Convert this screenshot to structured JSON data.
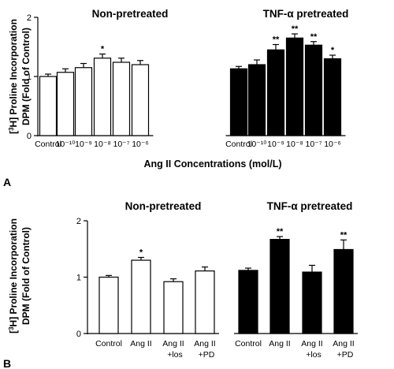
{
  "chart_data": [
    {
      "panel_label": "A",
      "type": "bar",
      "ylabel": "[3H] Proline Incorporation DPM (Fold of Control)",
      "xlabel": "Ang II Concentrations (mol/L)",
      "ylim": [
        0,
        2
      ],
      "yticks": [
        "0",
        "1",
        "2"
      ],
      "groups": [
        {
          "name": "Non-pretreated",
          "fill": "#ffffff",
          "categories": [
            "Control",
            "10⁻¹⁰",
            "10⁻⁹",
            "10⁻⁸",
            "10⁻⁷",
            "10⁻⁶"
          ],
          "values": [
            1.0,
            1.07,
            1.15,
            1.31,
            1.24,
            1.2
          ],
          "errors": [
            0.04,
            0.06,
            0.07,
            0.07,
            0.07,
            0.07
          ],
          "annotations": [
            "",
            "",
            "",
            "*",
            "",
            ""
          ]
        },
        {
          "name": "TNF-α pretreated",
          "fill": "#000000",
          "categories": [
            "Control",
            "10⁻¹⁰",
            "10⁻⁹",
            "10⁻⁸",
            "10⁻⁷",
            "10⁻⁶"
          ],
          "values": [
            1.13,
            1.2,
            1.45,
            1.65,
            1.53,
            1.3
          ],
          "errors": [
            0.04,
            0.08,
            0.09,
            0.07,
            0.06,
            0.06
          ],
          "annotations": [
            "",
            "",
            "**",
            "**",
            "**",
            "*"
          ]
        }
      ]
    },
    {
      "panel_label": "B",
      "type": "bar",
      "ylabel": "[3H] Proline Incorporation DPM (Fold of Control)",
      "xlabel": "",
      "ylim": [
        0,
        2
      ],
      "yticks": [
        "0",
        "1",
        "2"
      ],
      "groups": [
        {
          "name": "Non-pretreated",
          "fill": "#ffffff",
          "categories": [
            "Control",
            "Ang II",
            "Ang II +los",
            "Ang II +PD"
          ],
          "values": [
            1.0,
            1.3,
            0.92,
            1.11
          ],
          "errors": [
            0.03,
            0.05,
            0.05,
            0.07
          ],
          "annotations": [
            "",
            "*",
            "",
            ""
          ]
        },
        {
          "name": "TNF-α pretreated",
          "fill": "#000000",
          "categories": [
            "Control",
            "Ang II",
            "Ang II +los",
            "Ang II +PD"
          ],
          "values": [
            1.12,
            1.67,
            1.09,
            1.49
          ],
          "errors": [
            0.04,
            0.05,
            0.12,
            0.17
          ],
          "annotations": [
            "",
            "**",
            "",
            "**"
          ]
        }
      ]
    }
  ]
}
